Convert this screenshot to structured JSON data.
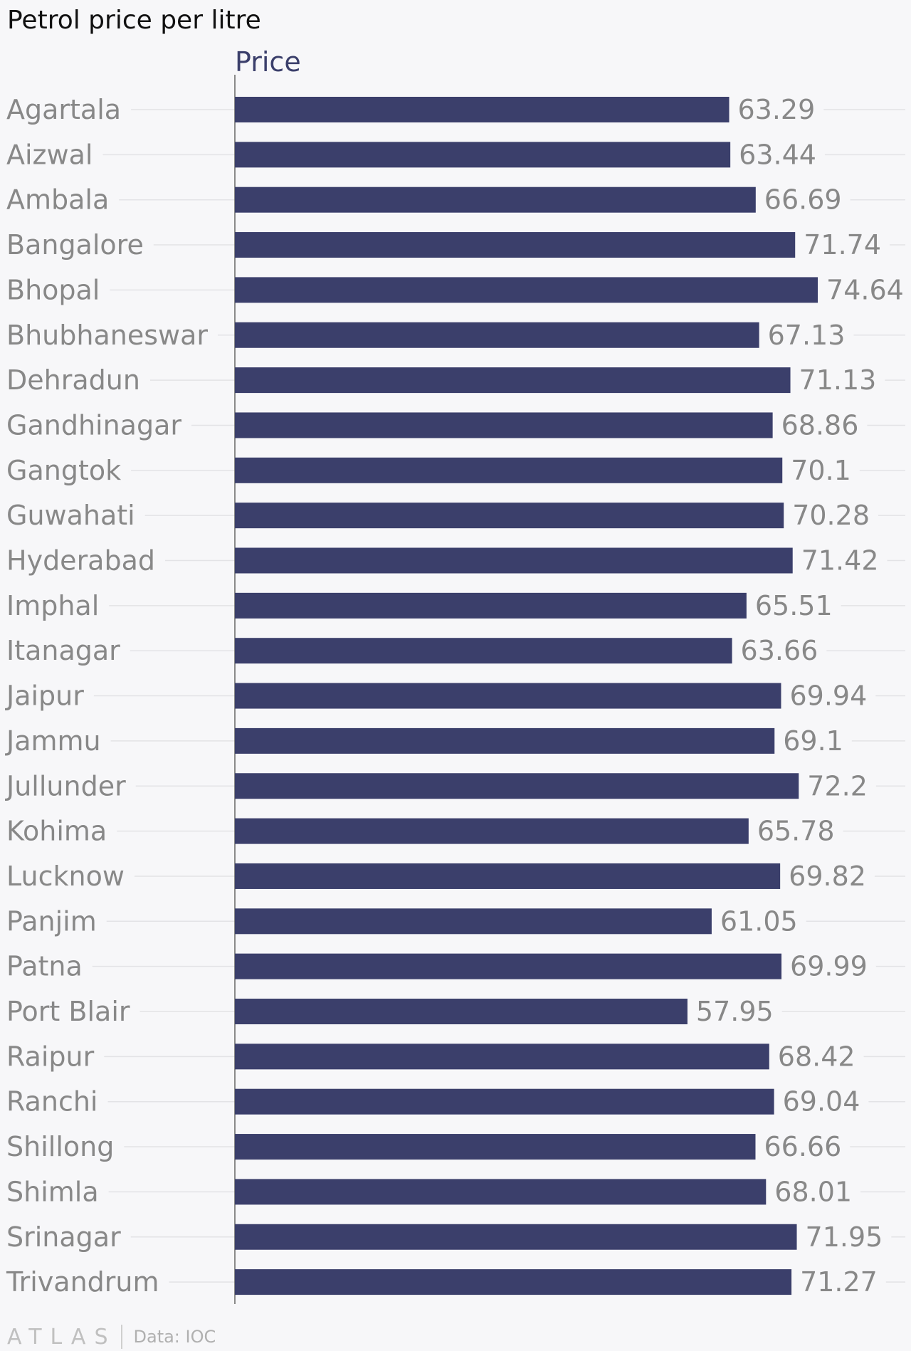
{
  "title": "Petrol price per litre",
  "footer": {
    "brand": "ATLAS",
    "source": "Data: IOC"
  },
  "colors": {
    "bar": "#3b3f6b",
    "series_label": "#3b3f6b",
    "text": "#888888",
    "grid": "#e3e3e6",
    "axis": "#666666"
  },
  "chart_data": {
    "type": "bar",
    "orientation": "horizontal",
    "title": "Petrol price per litre",
    "xlabel": "",
    "ylabel": "",
    "xlim": [
      0,
      75
    ],
    "grid": true,
    "categories": [
      "Agartala",
      "Aizwal",
      "Ambala",
      "Bangalore",
      "Bhopal",
      "Bhubhaneswar",
      "Dehradun",
      "Gandhinagar",
      "Gangtok",
      "Guwahati",
      "Hyderabad",
      "Imphal",
      "Itanagar",
      "Jaipur",
      "Jammu",
      "Jullunder",
      "Kohima",
      "Lucknow",
      "Panjim",
      "Patna",
      "Port Blair",
      "Raipur",
      "Ranchi",
      "Shillong",
      "Shimla",
      "Srinagar",
      "Trivandrum"
    ],
    "series": [
      {
        "name": "Price",
        "values": [
          63.29,
          63.44,
          66.69,
          71.74,
          74.64,
          67.13,
          71.13,
          68.86,
          70.1,
          70.28,
          71.42,
          65.51,
          63.66,
          69.94,
          69.1,
          72.2,
          65.78,
          69.82,
          61.05,
          69.99,
          57.95,
          68.42,
          69.04,
          66.66,
          68.01,
          71.95,
          71.27
        ]
      }
    ]
  }
}
